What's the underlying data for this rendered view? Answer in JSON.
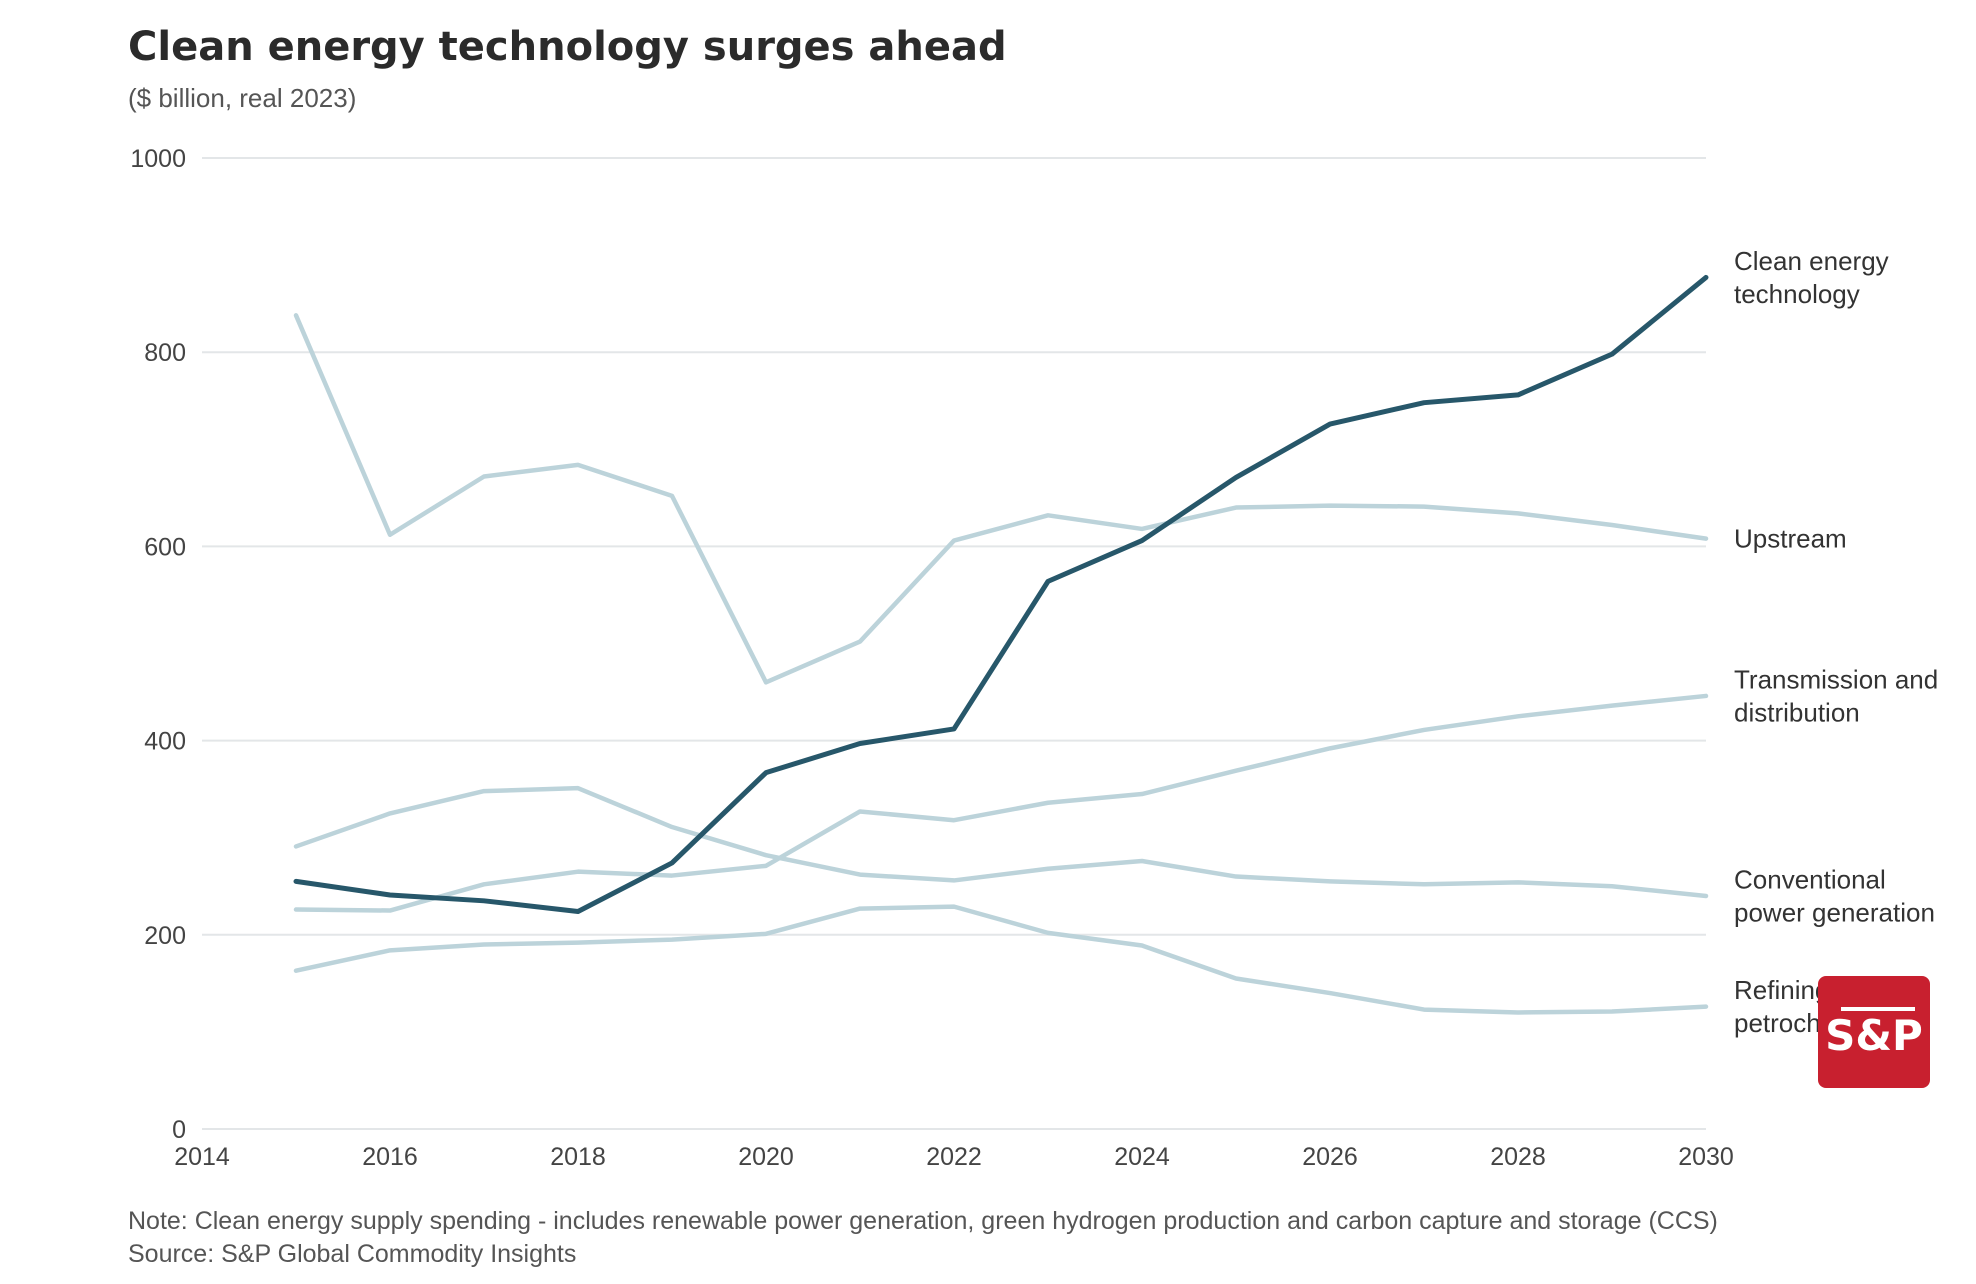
{
  "chart_data": {
    "type": "line",
    "title": "Clean energy technology surges ahead",
    "subtitle": "($ billion, real 2023)",
    "xlabel": "",
    "ylabel": "",
    "xlim": [
      2014,
      2030
    ],
    "ylim": [
      0,
      1000
    ],
    "x_ticks": [
      "2014",
      "2016",
      "2018",
      "2020",
      "2022",
      "2024",
      "2026",
      "2028",
      "2030"
    ],
    "y_ticks": [
      "0",
      "200",
      "400",
      "600",
      "800",
      "1000"
    ],
    "grid": true,
    "x": [
      2015,
      2016,
      2017,
      2018,
      2019,
      2020,
      2021,
      2022,
      2023,
      2024,
      2025,
      2026,
      2027,
      2028,
      2029,
      2030
    ],
    "series": [
      {
        "name": "Upstream",
        "label_lines": [
          "Upstream"
        ],
        "highlight": false,
        "values": [
          838,
          612,
          672,
          684,
          652,
          460,
          502,
          606,
          632,
          618,
          640,
          642,
          641,
          634,
          622,
          608
        ]
      },
      {
        "name": "Transmission and distribution",
        "label_lines": [
          "Transmission and",
          "distribution"
        ],
        "highlight": false,
        "values": [
          226,
          225,
          252,
          265,
          261,
          271,
          327,
          318,
          336,
          345,
          369,
          392,
          411,
          425,
          436,
          446
        ]
      },
      {
        "name": "Conventional power generation",
        "label_lines": [
          "Conventional",
          "power generation"
        ],
        "highlight": false,
        "values": [
          291,
          325,
          348,
          351,
          311,
          282,
          262,
          256,
          268,
          276,
          260,
          255,
          252,
          254,
          250,
          240
        ]
      },
      {
        "name": "Refining and petrochemicals",
        "label_lines": [
          "Refining and",
          "petrochemicals"
        ],
        "highlight": false,
        "values": [
          163,
          184,
          190,
          192,
          195,
          201,
          227,
          229,
          202,
          189,
          155,
          140,
          123,
          120,
          121,
          126
        ]
      },
      {
        "name": "Clean energy technology",
        "label_lines": [
          "Clean energy",
          "technology"
        ],
        "highlight": true,
        "values": [
          255,
          241,
          235,
          224,
          274,
          367,
          397,
          412,
          564,
          606,
          671,
          726,
          748,
          756,
          798,
          877
        ]
      }
    ],
    "note": "Note: Clean energy supply spending - includes renewable power generation, green hydrogen production and carbon capture and storage (CCS)",
    "source": "Source: S&P Global Commodity Insights"
  },
  "colors": {
    "highlight": "#27576a",
    "muted": "#bcd3da",
    "grid": "#e3e6e8",
    "logo": "#c8202f"
  },
  "logo": {
    "text": "S&P"
  }
}
